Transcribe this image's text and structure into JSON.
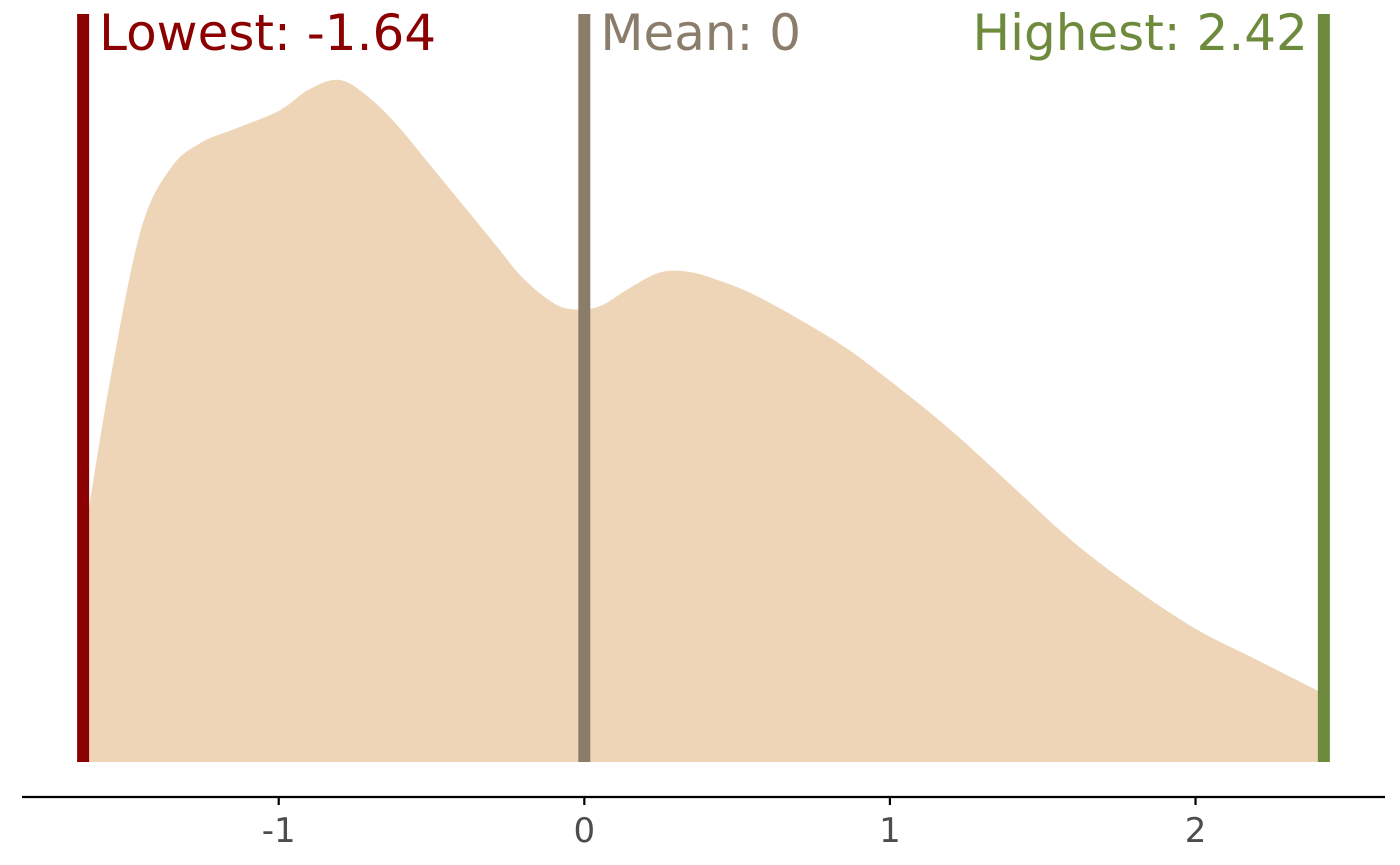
{
  "chart_data": {
    "type": "area",
    "title": "",
    "xlabel": "",
    "ylabel": "",
    "xlim": [
      -1.84,
      2.62
    ],
    "ylim": [
      0,
      1.1
    ],
    "grid": false,
    "x_ticks": [
      -1,
      0,
      1,
      2
    ],
    "x_tick_labels": [
      "-1",
      "0",
      "1",
      "2"
    ],
    "series": [
      {
        "type": "density",
        "color": "#EED5B7",
        "x": [
          -1.64,
          -1.55,
          -1.45,
          -1.35,
          -1.25,
          -1.15,
          -1.0,
          -0.9,
          -0.8,
          -0.7,
          -0.6,
          -0.5,
          -0.4,
          -0.3,
          -0.2,
          -0.1,
          -0.03,
          0.05,
          0.15,
          0.25,
          0.35,
          0.45,
          0.55,
          0.7,
          0.85,
          1.0,
          1.2,
          1.4,
          1.6,
          1.8,
          2.0,
          2.2,
          2.42
        ],
        "y": [
          0.35,
          0.62,
          0.86,
          0.96,
          1.0,
          1.02,
          1.05,
          1.085,
          1.1,
          1.07,
          1.02,
          0.96,
          0.9,
          0.84,
          0.78,
          0.74,
          0.73,
          0.735,
          0.765,
          0.79,
          0.79,
          0.775,
          0.755,
          0.715,
          0.67,
          0.615,
          0.535,
          0.445,
          0.355,
          0.28,
          0.215,
          0.165,
          0.11
        ]
      }
    ],
    "reference_lines": [
      {
        "key": "lowest",
        "value": -1.64,
        "label": "Lowest: -1.64",
        "color": "#8B0000",
        "label_anchor": "start"
      },
      {
        "key": "mean",
        "value": 0,
        "label": "Mean: 0",
        "color": "#8B7D6B",
        "label_anchor": "start"
      },
      {
        "key": "highest",
        "value": 2.42,
        "label": "Highest: 2.42",
        "color": "#6E8B3D",
        "label_anchor": "end"
      }
    ],
    "axis_color": "#000000",
    "tick_label_color": "#4d4d4d"
  }
}
